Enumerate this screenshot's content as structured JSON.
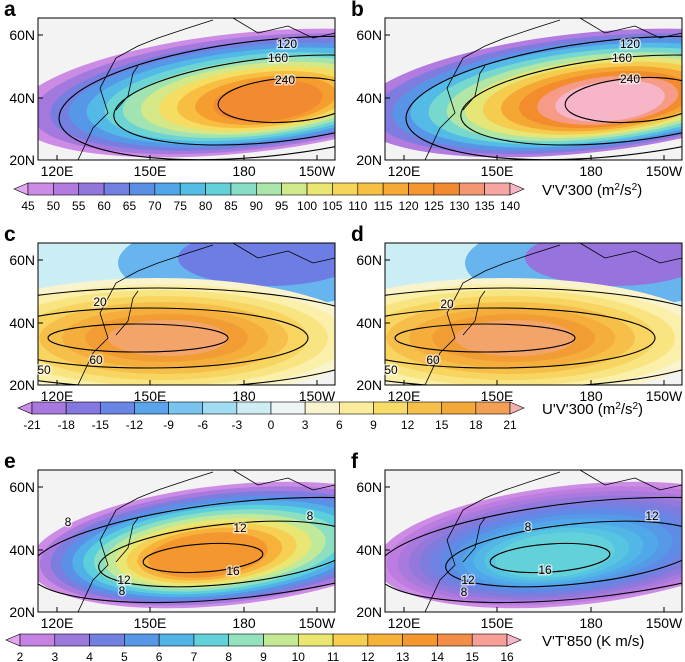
{
  "panels": [
    {
      "label": "a",
      "contour_labels": [
        120,
        160,
        240
      ]
    },
    {
      "label": "b",
      "contour_labels": [
        120,
        160,
        240
      ]
    },
    {
      "label": "c",
      "contour_labels": [
        20,
        60,
        50
      ]
    },
    {
      "label": "d",
      "contour_labels": [
        20,
        60,
        50
      ]
    },
    {
      "label": "e",
      "contour_labels": [
        8,
        12,
        8,
        16,
        12,
        8
      ]
    },
    {
      "label": "f",
      "contour_labels": [
        8,
        12,
        16,
        12,
        8
      ]
    }
  ],
  "lat_ticks": [
    "60N",
    "40N",
    "20N"
  ],
  "lon_ticks": [
    "120E",
    "150E",
    "180",
    "150W"
  ],
  "colorbars": [
    {
      "title": [
        "V'V'300 (m",
        "2",
        "/s",
        "2",
        ")"
      ],
      "labels": [
        45,
        50,
        55,
        60,
        65,
        70,
        75,
        80,
        85,
        90,
        95,
        100,
        105,
        110,
        115,
        120,
        125,
        130,
        135,
        140
      ]
    },
    {
      "title": [
        "U'V'300 (m",
        "2",
        "/s",
        "2",
        ")"
      ],
      "labels": [
        -21,
        -18,
        -15,
        -12,
        -9,
        -6,
        -3,
        0,
        3,
        6,
        9,
        12,
        15,
        18,
        21
      ]
    },
    {
      "title": [
        "V'T'850 (K m/s)"
      ],
      "labels": [
        2,
        3,
        4,
        5,
        6,
        7,
        8,
        9,
        10,
        11,
        12,
        13,
        14,
        15,
        16
      ]
    }
  ]
}
